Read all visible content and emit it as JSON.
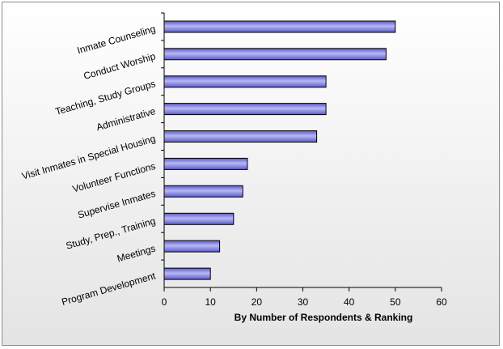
{
  "chart_data": {
    "type": "bar",
    "orientation": "horizontal",
    "categories": [
      "Inmate Counseling",
      "Conduct Worship",
      "Teaching, Study Groups",
      "Administrative",
      "Visit Inmates in Special Housing",
      "Volunteer Functions",
      "Supervise Inmates",
      "Study, Prep., Training",
      "Meetings",
      "Program Development"
    ],
    "values": [
      50,
      48,
      35,
      35,
      33,
      18,
      17,
      15,
      12,
      10
    ],
    "xlabel": "By Number of Respondents & Ranking",
    "xlim": [
      0,
      60
    ],
    "xticks": [
      0,
      10,
      20,
      30,
      40,
      50,
      60
    ],
    "grid": false,
    "legend": "none",
    "colors": {
      "bar_fill_dark": "#5a5ac8",
      "bar_fill_light": "#b8b8f4",
      "bar_stroke": "#000000",
      "background_top": "#ffffff",
      "background_bottom": "#e4e4e4"
    }
  }
}
